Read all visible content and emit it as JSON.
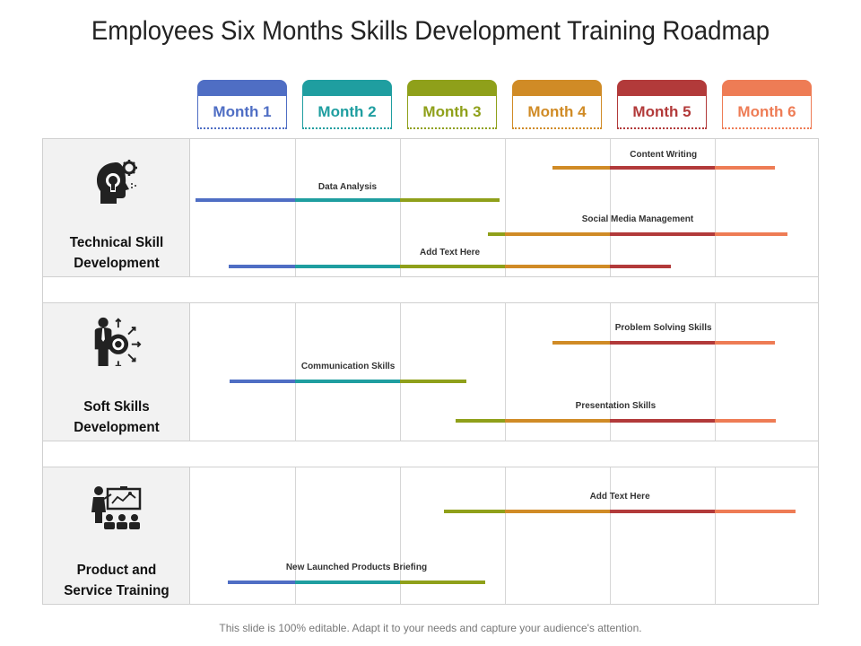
{
  "title": "Employees Six Months Skills Development Training Roadmap",
  "footer": "This slide is 100% editable. Adapt it to your needs and capture your audience's attention.",
  "months": [
    {
      "label": "Month 1",
      "color": "#4f6ec4"
    },
    {
      "label": "Month 2",
      "color": "#1f9ea0"
    },
    {
      "label": "Month 3",
      "color": "#8fa01a"
    },
    {
      "label": "Month 4",
      "color": "#d08b26"
    },
    {
      "label": "Month 5",
      "color": "#b23a3a"
    },
    {
      "label": "Month 6",
      "color": "#ee7c55"
    }
  ],
  "rows": [
    {
      "label_line1": "Technical Skill",
      "label_line2": "Development",
      "icon": "brain-gear-icon",
      "bars": [
        {
          "label": "Content Writing",
          "start_month": 4.45,
          "end_month": 6.57
        },
        {
          "label": "Data Analysis",
          "start_month": 1.05,
          "end_month": 3.95
        },
        {
          "label": "Social Media Management",
          "start_month": 3.84,
          "end_month": 6.69
        },
        {
          "label": "Add Text Here",
          "start_month": 1.37,
          "end_month": 5.58
        }
      ]
    },
    {
      "label_line1": "Soft Skills",
      "label_line2": "Development",
      "icon": "businessman-target-icon",
      "bars": [
        {
          "label": "Problem Solving Skills",
          "start_month": 4.45,
          "end_month": 6.57
        },
        {
          "label": "Communication Skills",
          "start_month": 1.38,
          "end_month": 3.63
        },
        {
          "label": "Presentation Skills",
          "start_month": 3.53,
          "end_month": 6.58
        }
      ]
    },
    {
      "label_line1": "Product and",
      "label_line2": "Service Training",
      "icon": "presentation-audience-icon",
      "bars": [
        {
          "label": "Add Text Here",
          "start_month": 3.42,
          "end_month": 6.77
        },
        {
          "label": "New Launched Products Briefing",
          "start_month": 1.36,
          "end_month": 3.81
        }
      ]
    }
  ]
}
